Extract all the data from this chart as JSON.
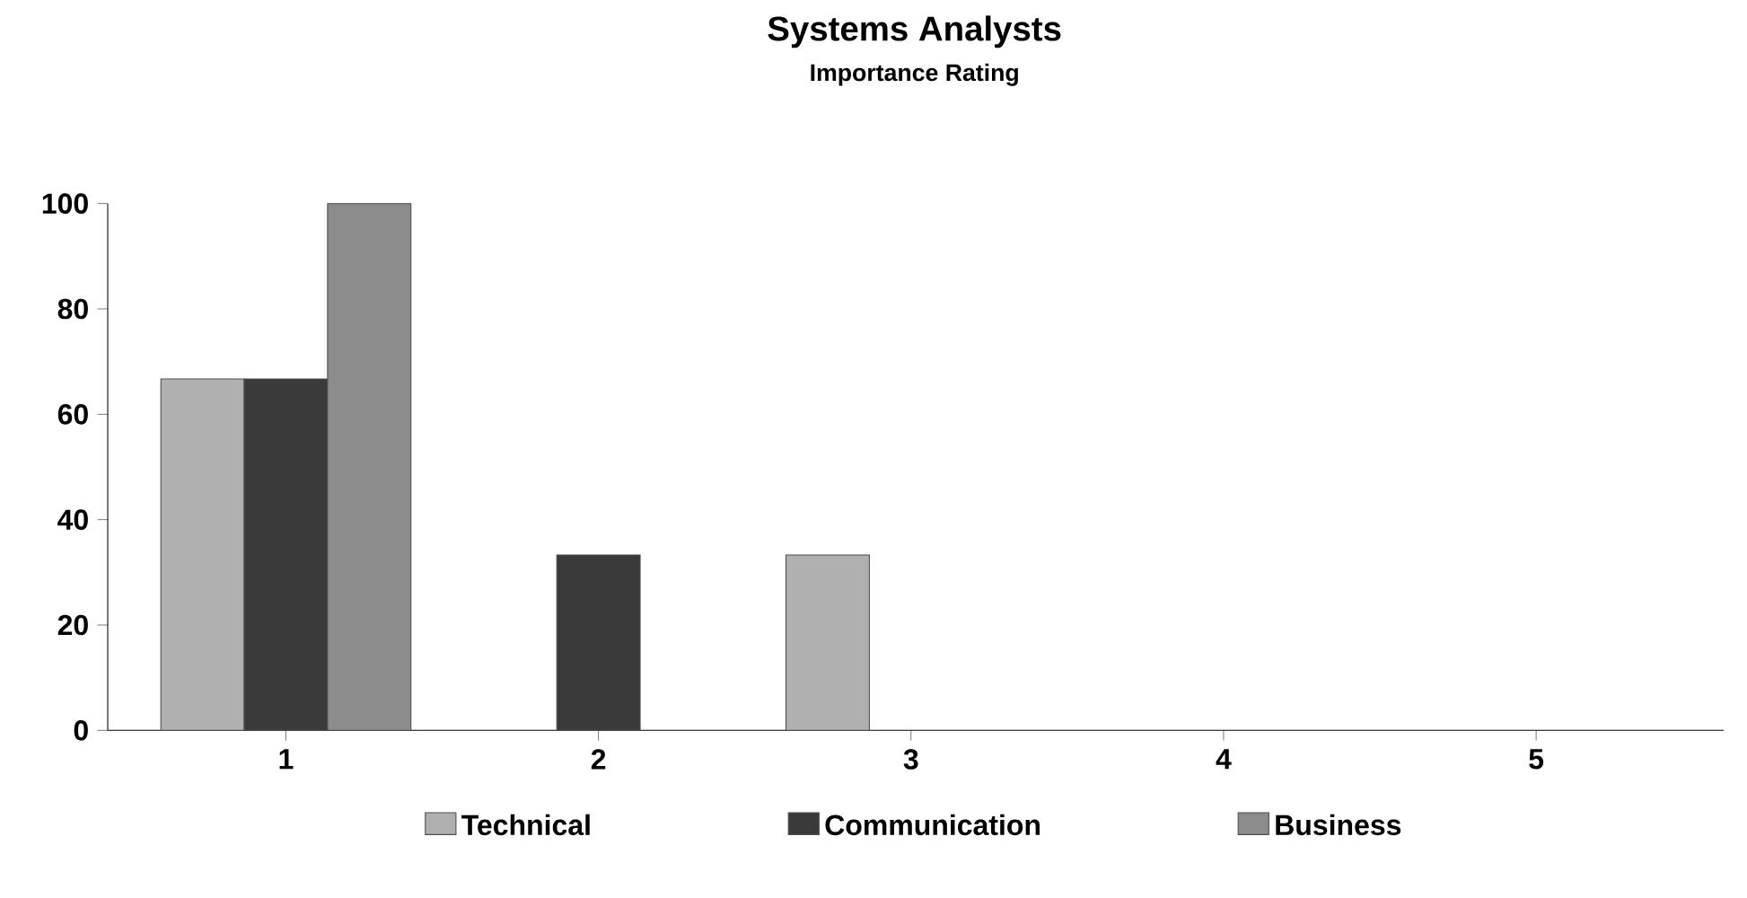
{
  "chart_data": {
    "type": "bar",
    "title": "Systems Analysts",
    "subtitle": "Importance Rating",
    "categories": [
      "1",
      "2",
      "3",
      "4",
      "5"
    ],
    "series": [
      {
        "name": "Technical",
        "color": "#b0b0b0",
        "values": [
          66.7,
          null,
          33.3,
          null,
          null
        ]
      },
      {
        "name": "Communication",
        "color": "#3a3a3a",
        "values": [
          66.7,
          33.3,
          null,
          null,
          null
        ]
      },
      {
        "name": "Business",
        "color": "#8c8c8c",
        "values": [
          100,
          null,
          null,
          null,
          null
        ]
      }
    ],
    "ylim": [
      0,
      100
    ],
    "yticks": [
      0,
      20,
      40,
      60,
      80,
      100
    ],
    "grid": false,
    "legend": "bottom"
  }
}
